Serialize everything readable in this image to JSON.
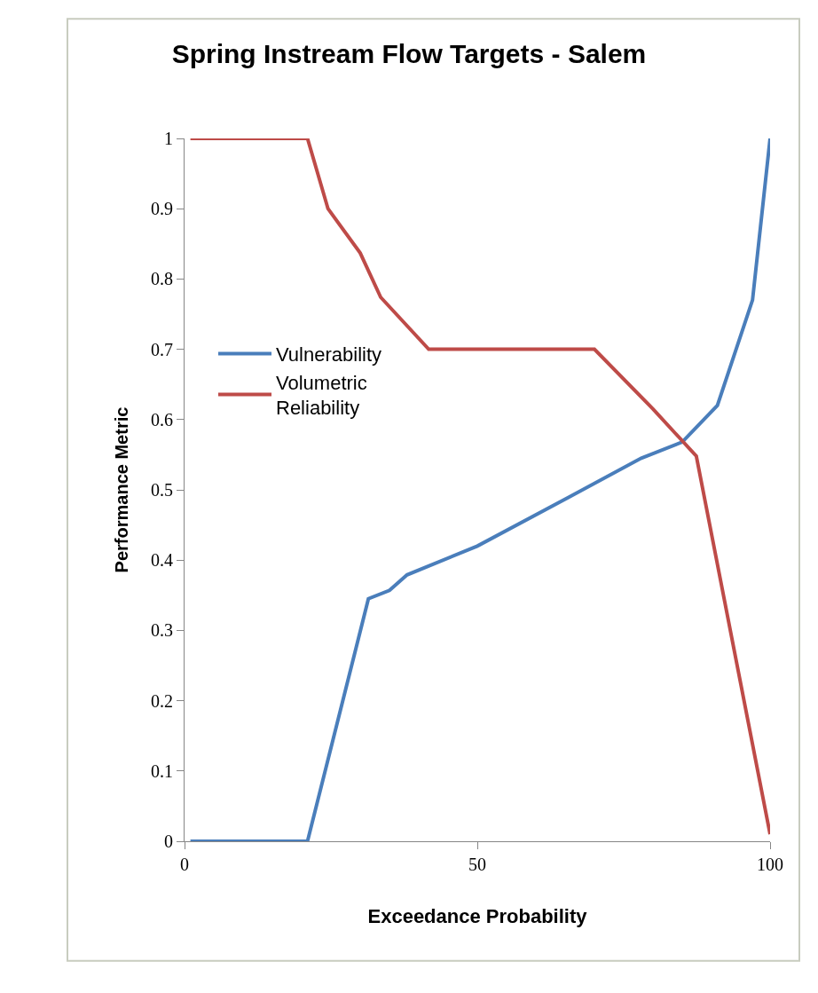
{
  "chart_data": {
    "type": "line",
    "title": "Spring Instream Flow Targets - Salem",
    "xlabel": "Exceedance Probability",
    "ylabel": "Performance Metric",
    "series": [
      {
        "name": "Vulnerability",
        "color": "#4a7ebb",
        "x": [
          1,
          21,
          31.4,
          35,
          38,
          50,
          65.5,
          78,
          85,
          91,
          97,
          100
        ],
        "values": [
          0,
          0,
          0.345,
          0.357,
          0.379,
          0.42,
          0.489,
          0.545,
          0.568,
          0.62,
          0.77,
          1
        ]
      },
      {
        "name": "Volumetric Reliability",
        "color": "#be4b48",
        "x": [
          1,
          21,
          24.5,
          30,
          33.5,
          41.7,
          70,
          80,
          87.4,
          100
        ],
        "values": [
          1,
          1,
          0.9,
          0.837,
          0.774,
          0.7,
          0.7,
          0.615,
          0.548,
          0.01
        ]
      }
    ],
    "xlim": [
      0,
      100
    ],
    "xticks": [
      0,
      50,
      100
    ],
    "ylim": [
      0,
      1
    ],
    "yticks": [
      0,
      {
        "value": 0.1,
        "label": "0.1"
      },
      {
        "value": 0.2,
        "label": "0.2"
      },
      {
        "value": 0.3,
        "label": "0.3"
      },
      {
        "value": 0.4,
        "label": "0.4"
      },
      {
        "value": 0.5,
        "label": "0.5"
      },
      {
        "value": 0.6,
        "label": "0.6"
      },
      {
        "value": 0.7,
        "label": "0.7"
      },
      {
        "value": 0.8,
        "label": "0.8"
      },
      {
        "value": 0.9,
        "label": "0.9"
      },
      1
    ],
    "legend": "left",
    "marker": "none",
    "line_style": "solid"
  }
}
